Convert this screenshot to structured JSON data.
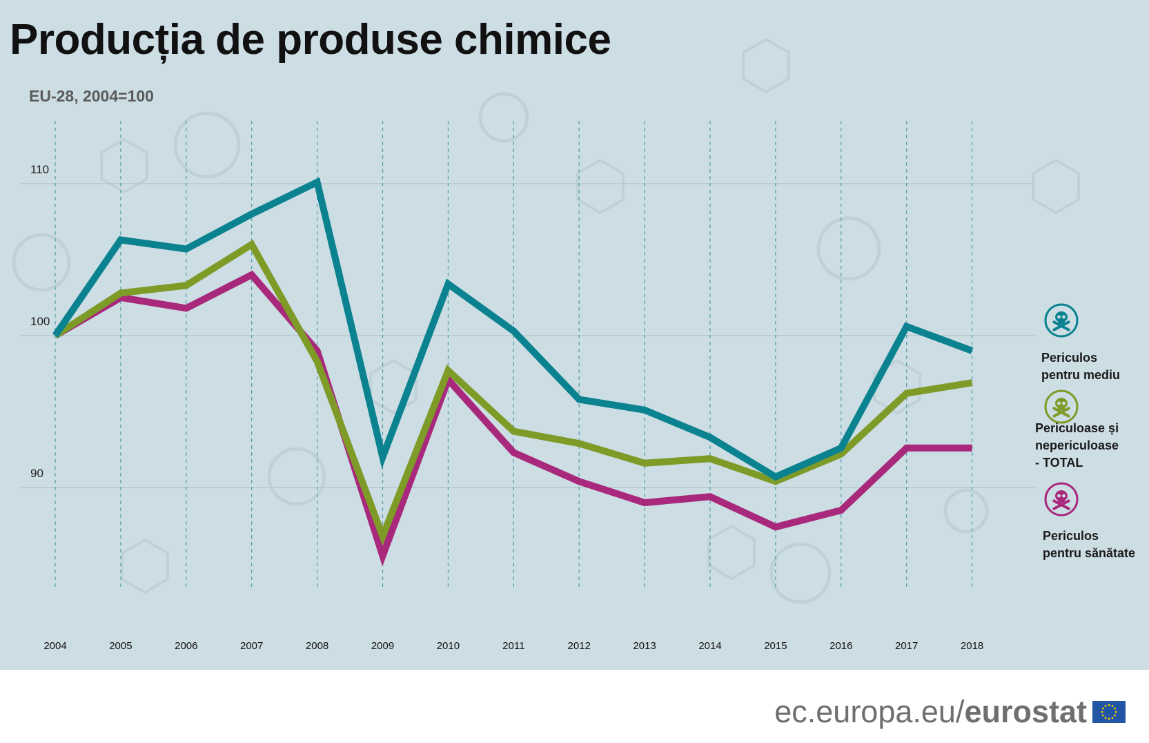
{
  "header": {
    "title": "Producția de produse chimice",
    "subtitle": "EU-28, 2004=100"
  },
  "footer": {
    "url_prefix": "ec.europa.eu/",
    "brand": "eurostat"
  },
  "colors": {
    "background": "#cddde4",
    "grid": "#b4c7cf",
    "dashed": "#4f9ba6",
    "environment": "#0a8290",
    "total": "#7e9b28",
    "health": "#a8287c",
    "flag": "#2255a4",
    "flag_stars": "#ffcc00"
  },
  "legend": {
    "environment": {
      "line1": "Periculos",
      "line2": "pentru mediu",
      "icon": "skull-crossbones-icon"
    },
    "total": {
      "line1": "Periculoase și",
      "line2": "nepericuloase",
      "line3": "- TOTAL",
      "icon": "skull-crossbones-icon"
    },
    "health": {
      "line1": "Periculos",
      "line2": "pentru sănătate",
      "icon": "skull-crossbones-icon"
    }
  },
  "chart_data": {
    "type": "line",
    "title": "Producția de produse chimice",
    "subtitle": "EU-28, 2004=100",
    "x": [
      "2004",
      "2005",
      "2006",
      "2007",
      "2008",
      "2009",
      "2010",
      "2011",
      "2012",
      "2013",
      "2014",
      "2015",
      "2016",
      "2017",
      "2018"
    ],
    "y_ticks": [
      "90",
      "100",
      "110"
    ],
    "ylim": [
      83,
      114
    ],
    "grid": "horizontal",
    "legend_position": "right",
    "series": [
      {
        "name": "Periculos pentru mediu",
        "key": "environment",
        "values": [
          100,
          106.3,
          105.7,
          108.0,
          110.1,
          92.0,
          103.4,
          100.3,
          95.8,
          95.1,
          93.3,
          90.7,
          92.6,
          100.6,
          99.0
        ]
      },
      {
        "name": "Periculoase și nepericuloase - TOTAL",
        "key": "total",
        "values": [
          100,
          102.8,
          103.3,
          106.0,
          98.3,
          86.8,
          97.7,
          93.7,
          92.9,
          91.6,
          91.9,
          90.4,
          92.2,
          96.2,
          96.9
        ]
      },
      {
        "name": "Periculos pentru sănătate",
        "key": "health",
        "values": [
          100,
          102.5,
          101.8,
          104.0,
          99.0,
          85.5,
          97.1,
          92.3,
          90.4,
          89.0,
          89.4,
          87.4,
          88.5,
          92.6,
          92.6
        ]
      }
    ]
  }
}
